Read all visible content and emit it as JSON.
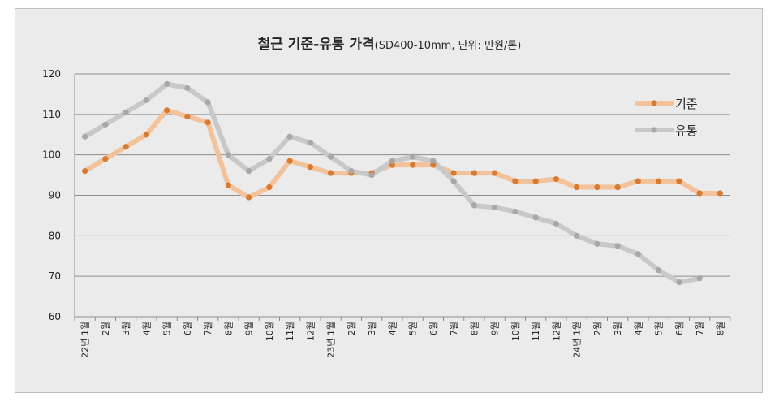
{
  "chart_data": {
    "type": "line",
    "title": "철근 기준-유통 가격",
    "subtitle": "(SD400-10mm, 단위: 만원/톤)",
    "xlabel": "",
    "ylabel": "",
    "ylim": [
      60,
      120
    ],
    "yticks": [
      60,
      70,
      80,
      90,
      100,
      110,
      120
    ],
    "grid": true,
    "legend_position": "right",
    "categories": [
      "22년 1월",
      "2월",
      "3월",
      "4월",
      "5월",
      "6월",
      "7월",
      "8월",
      "9월",
      "10월",
      "11월",
      "12월",
      "23년 1월",
      "2월",
      "3월",
      "4월",
      "5월",
      "6월",
      "7월",
      "8월",
      "9월",
      "10월",
      "11월",
      "12월",
      "24년 1월",
      "2월",
      "3월",
      "4월",
      "5월",
      "6월",
      "7월",
      "8월"
    ],
    "series": [
      {
        "name": "기준",
        "line_color": "#f2c29a",
        "marker_color": "#d97a30",
        "values": [
          96,
          99,
          102,
          105,
          111,
          109.5,
          108,
          92.5,
          89.5,
          92,
          98.5,
          97,
          95.5,
          95.5,
          95.5,
          97.5,
          97.5,
          97.5,
          95.5,
          95.5,
          95.5,
          93.5,
          93.5,
          94,
          92,
          92,
          92,
          93.5,
          93.5,
          93.5,
          90.5,
          90.5
        ]
      },
      {
        "name": "유통",
        "line_color": "#c8c8c8",
        "marker_color": "#a8a8a8",
        "values": [
          104.5,
          107.5,
          110.5,
          113.5,
          117.5,
          116.5,
          113,
          100,
          96,
          99,
          104.5,
          103,
          99.5,
          96,
          95,
          98.5,
          99.5,
          98.5,
          93.5,
          87.5,
          87,
          86,
          84.5,
          83,
          80,
          78,
          77.5,
          75.5,
          71.5,
          68.5,
          69.5,
          null
        ]
      }
    ]
  }
}
